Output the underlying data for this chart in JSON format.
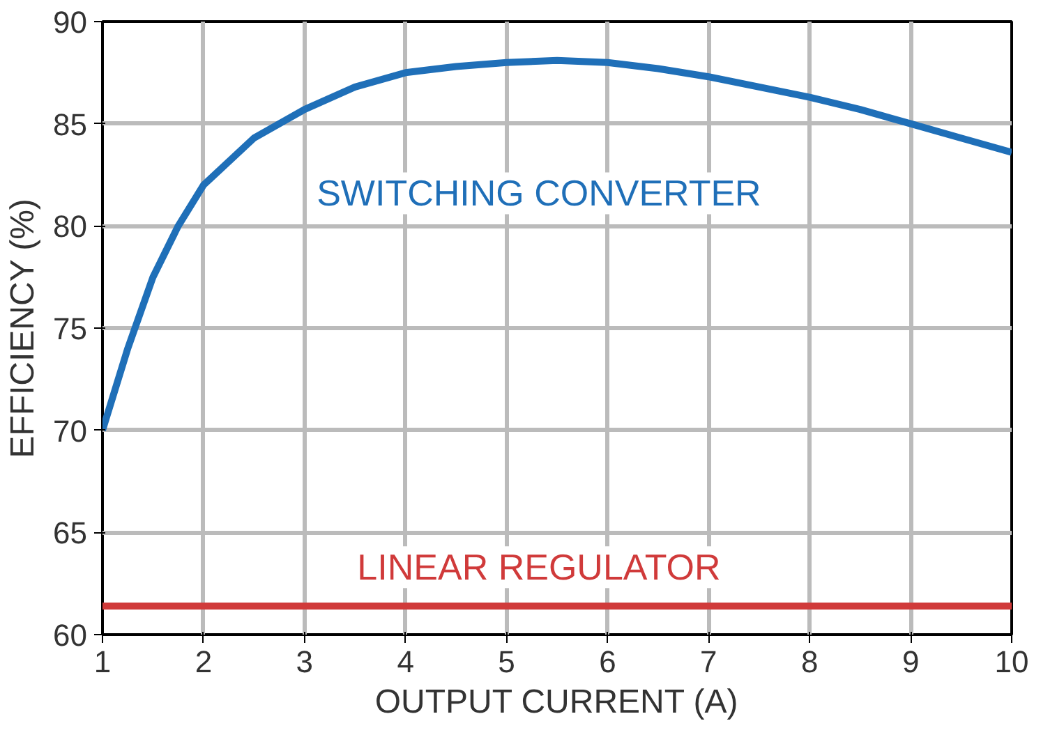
{
  "chart_data": {
    "type": "line",
    "xlabel": "OUTPUT CURRENT (A)",
    "ylabel": "EFFICIENCY (%)",
    "xlim": [
      1,
      10
    ],
    "ylim": [
      60,
      90
    ],
    "xticks": [
      1,
      2,
      3,
      4,
      5,
      6,
      7,
      8,
      9,
      10
    ],
    "yticks": [
      60,
      65,
      70,
      75,
      80,
      85,
      90
    ],
    "grid": true,
    "marker": "none",
    "line_style": "solid",
    "series": [
      {
        "name": "SWITCHING CONVERTER",
        "color": "#1f6fb8",
        "x": [
          1,
          1.25,
          1.5,
          1.75,
          2,
          2.5,
          3,
          3.5,
          4,
          4.5,
          5,
          5.5,
          6,
          6.5,
          7,
          7.5,
          8,
          8.5,
          9,
          9.5,
          10
        ],
        "values": [
          70,
          74,
          77.5,
          80,
          82,
          84.3,
          85.7,
          86.8,
          87.5,
          87.8,
          88,
          88.1,
          88,
          87.7,
          87.3,
          86.8,
          86.3,
          85.7,
          85,
          84.3,
          83.6
        ]
      },
      {
        "name": "LINEAR REGULATOR",
        "color": "#d03a3a",
        "x": [
          1,
          10
        ],
        "values": [
          61.4,
          61.4
        ]
      }
    ]
  }
}
